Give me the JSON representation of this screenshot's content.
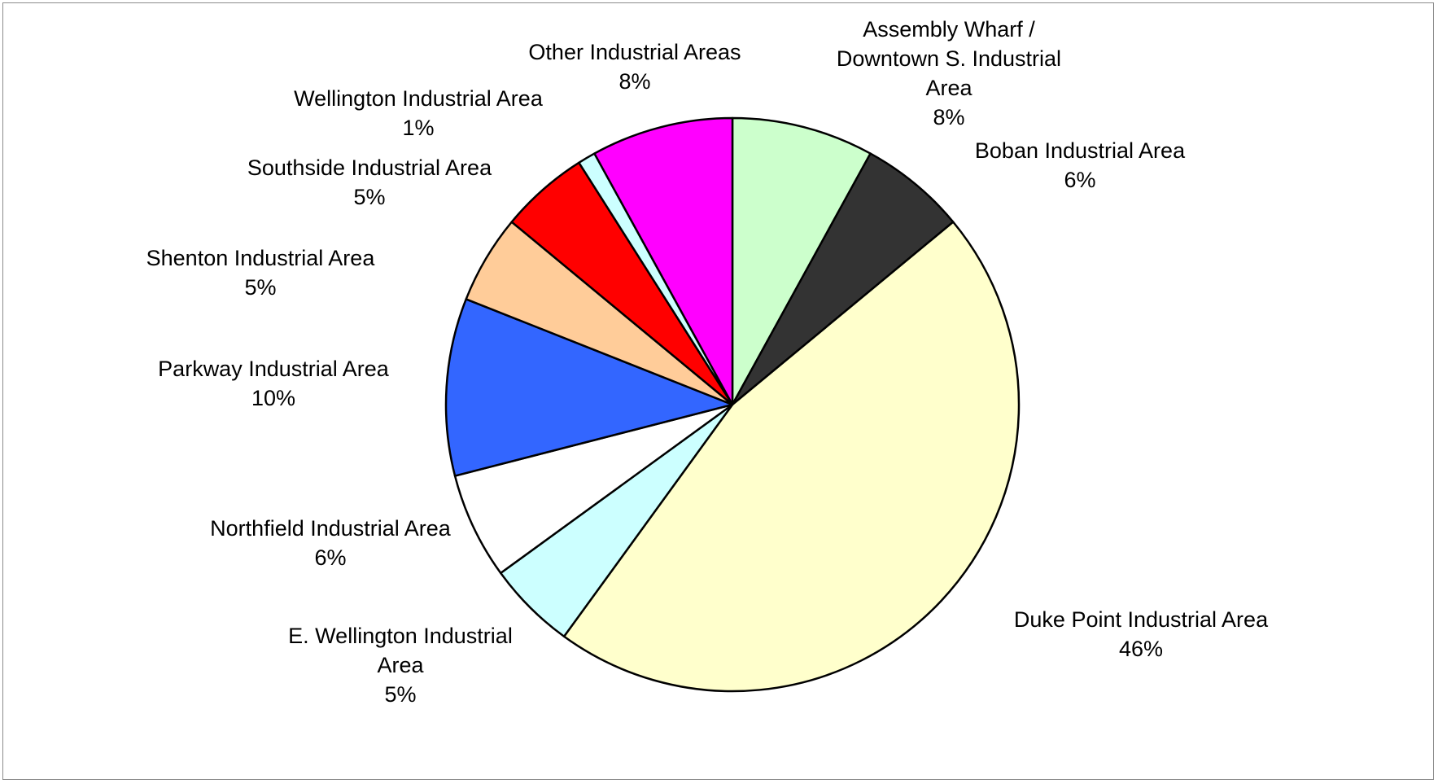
{
  "chart_data": {
    "type": "pie",
    "categories": [
      "Assembly Wharf / Downtown S. Industrial Area",
      "Boban Industrial Area",
      "Duke Point Industrial Area",
      "E. Wellington Industrial Area",
      "Northfield Industrial Area",
      "Parkway Industrial Area",
      "Shenton Industrial Area",
      "Southside Industrial Area",
      "Wellington Industrial Area",
      "Other Industrial Areas"
    ],
    "values": [
      8,
      6,
      46,
      5,
      6,
      10,
      5,
      5,
      1,
      8
    ],
    "value_labels": [
      "8%",
      "6%",
      "46%",
      "5%",
      "6%",
      "10%",
      "5%",
      "5%",
      "1%",
      "8%"
    ],
    "colors": [
      "#ccffcc",
      "#333333",
      "#ffffcc",
      "#ccffff",
      "#ffffff",
      "#3366ff",
      "#ffcc99",
      "#ff0000",
      "#ccffff",
      "#ff00ff"
    ]
  }
}
